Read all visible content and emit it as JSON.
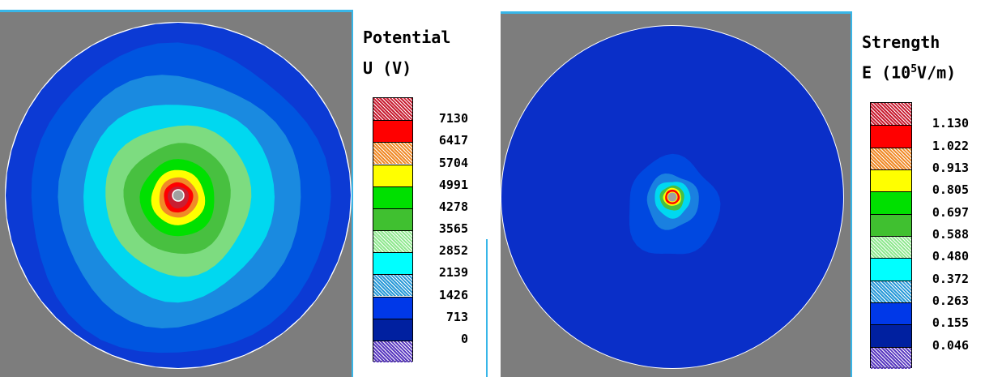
{
  "chart_data": [
    {
      "type": "heatmap",
      "plot": "potential-field-contour",
      "legend_title": "Potential",
      "legend_unit": "U (V)",
      "levels": [
        "7130",
        "6417",
        "5704",
        "4991",
        "4278",
        "3565",
        "2852",
        "2139",
        "1426",
        "713",
        "0"
      ],
      "bands": [
        {
          "color": "#c81e32",
          "pattern": "hatched"
        },
        {
          "color": "#ff0000",
          "pattern": "solid"
        },
        {
          "color": "#f08a28",
          "pattern": "hatched"
        },
        {
          "color": "#ffff00",
          "pattern": "solid"
        },
        {
          "color": "#00e000",
          "pattern": "solid"
        },
        {
          "color": "#40c030",
          "pattern": "solid"
        },
        {
          "color": "#90e890",
          "pattern": "hatched"
        },
        {
          "color": "#00ffff",
          "pattern": "solid"
        },
        {
          "color": "#2a9ad8",
          "pattern": "hatched"
        },
        {
          "color": "#0038e8",
          "pattern": "solid"
        },
        {
          "color": "#0020a0",
          "pattern": "solid"
        },
        {
          "color": "#5a3ac0",
          "pattern": "hatched"
        }
      ],
      "contour_rings_outer_to_inner": [
        "#0c3ad4",
        "#0055e0",
        "#1a8ae0",
        "#00d8f0",
        "#7ddc80",
        "#48c040",
        "#00e000",
        "#ffff00",
        "#f08a28",
        "#ff0000",
        "#c81e32"
      ],
      "center_hole_color": "#a0a0a0",
      "background_color": "#7d7d7d"
    },
    {
      "type": "heatmap",
      "plot": "field-strength-contour",
      "legend_title": "Strength",
      "legend_unit": "E (10",
      "legend_unit_exponent": "5",
      "legend_unit_suffix": "V/m)",
      "levels": [
        "1.130",
        "1.022",
        "0.913",
        "0.805",
        "0.697",
        "0.588",
        "0.480",
        "0.372",
        "0.263",
        "0.155",
        "0.046"
      ],
      "bands": [
        {
          "color": "#c81e32",
          "pattern": "hatched"
        },
        {
          "color": "#ff0000",
          "pattern": "solid"
        },
        {
          "color": "#f08a28",
          "pattern": "hatched"
        },
        {
          "color": "#ffff00",
          "pattern": "solid"
        },
        {
          "color": "#00e000",
          "pattern": "solid"
        },
        {
          "color": "#40c030",
          "pattern": "solid"
        },
        {
          "color": "#90e890",
          "pattern": "hatched"
        },
        {
          "color": "#00ffff",
          "pattern": "solid"
        },
        {
          "color": "#2a9ad8",
          "pattern": "hatched"
        },
        {
          "color": "#0038e8",
          "pattern": "solid"
        },
        {
          "color": "#0020a0",
          "pattern": "solid"
        },
        {
          "color": "#5a3ac0",
          "pattern": "hatched"
        }
      ],
      "contour_rings_outer_to_inner": [
        "#0a2fc8",
        "#0048e0",
        "#1a80e0",
        "#00d8f0",
        "#48c040",
        "#ffff00",
        "#ff0000"
      ],
      "center_hole_color": "#a0a0a0",
      "background_color": "#7d7d7d"
    }
  ]
}
